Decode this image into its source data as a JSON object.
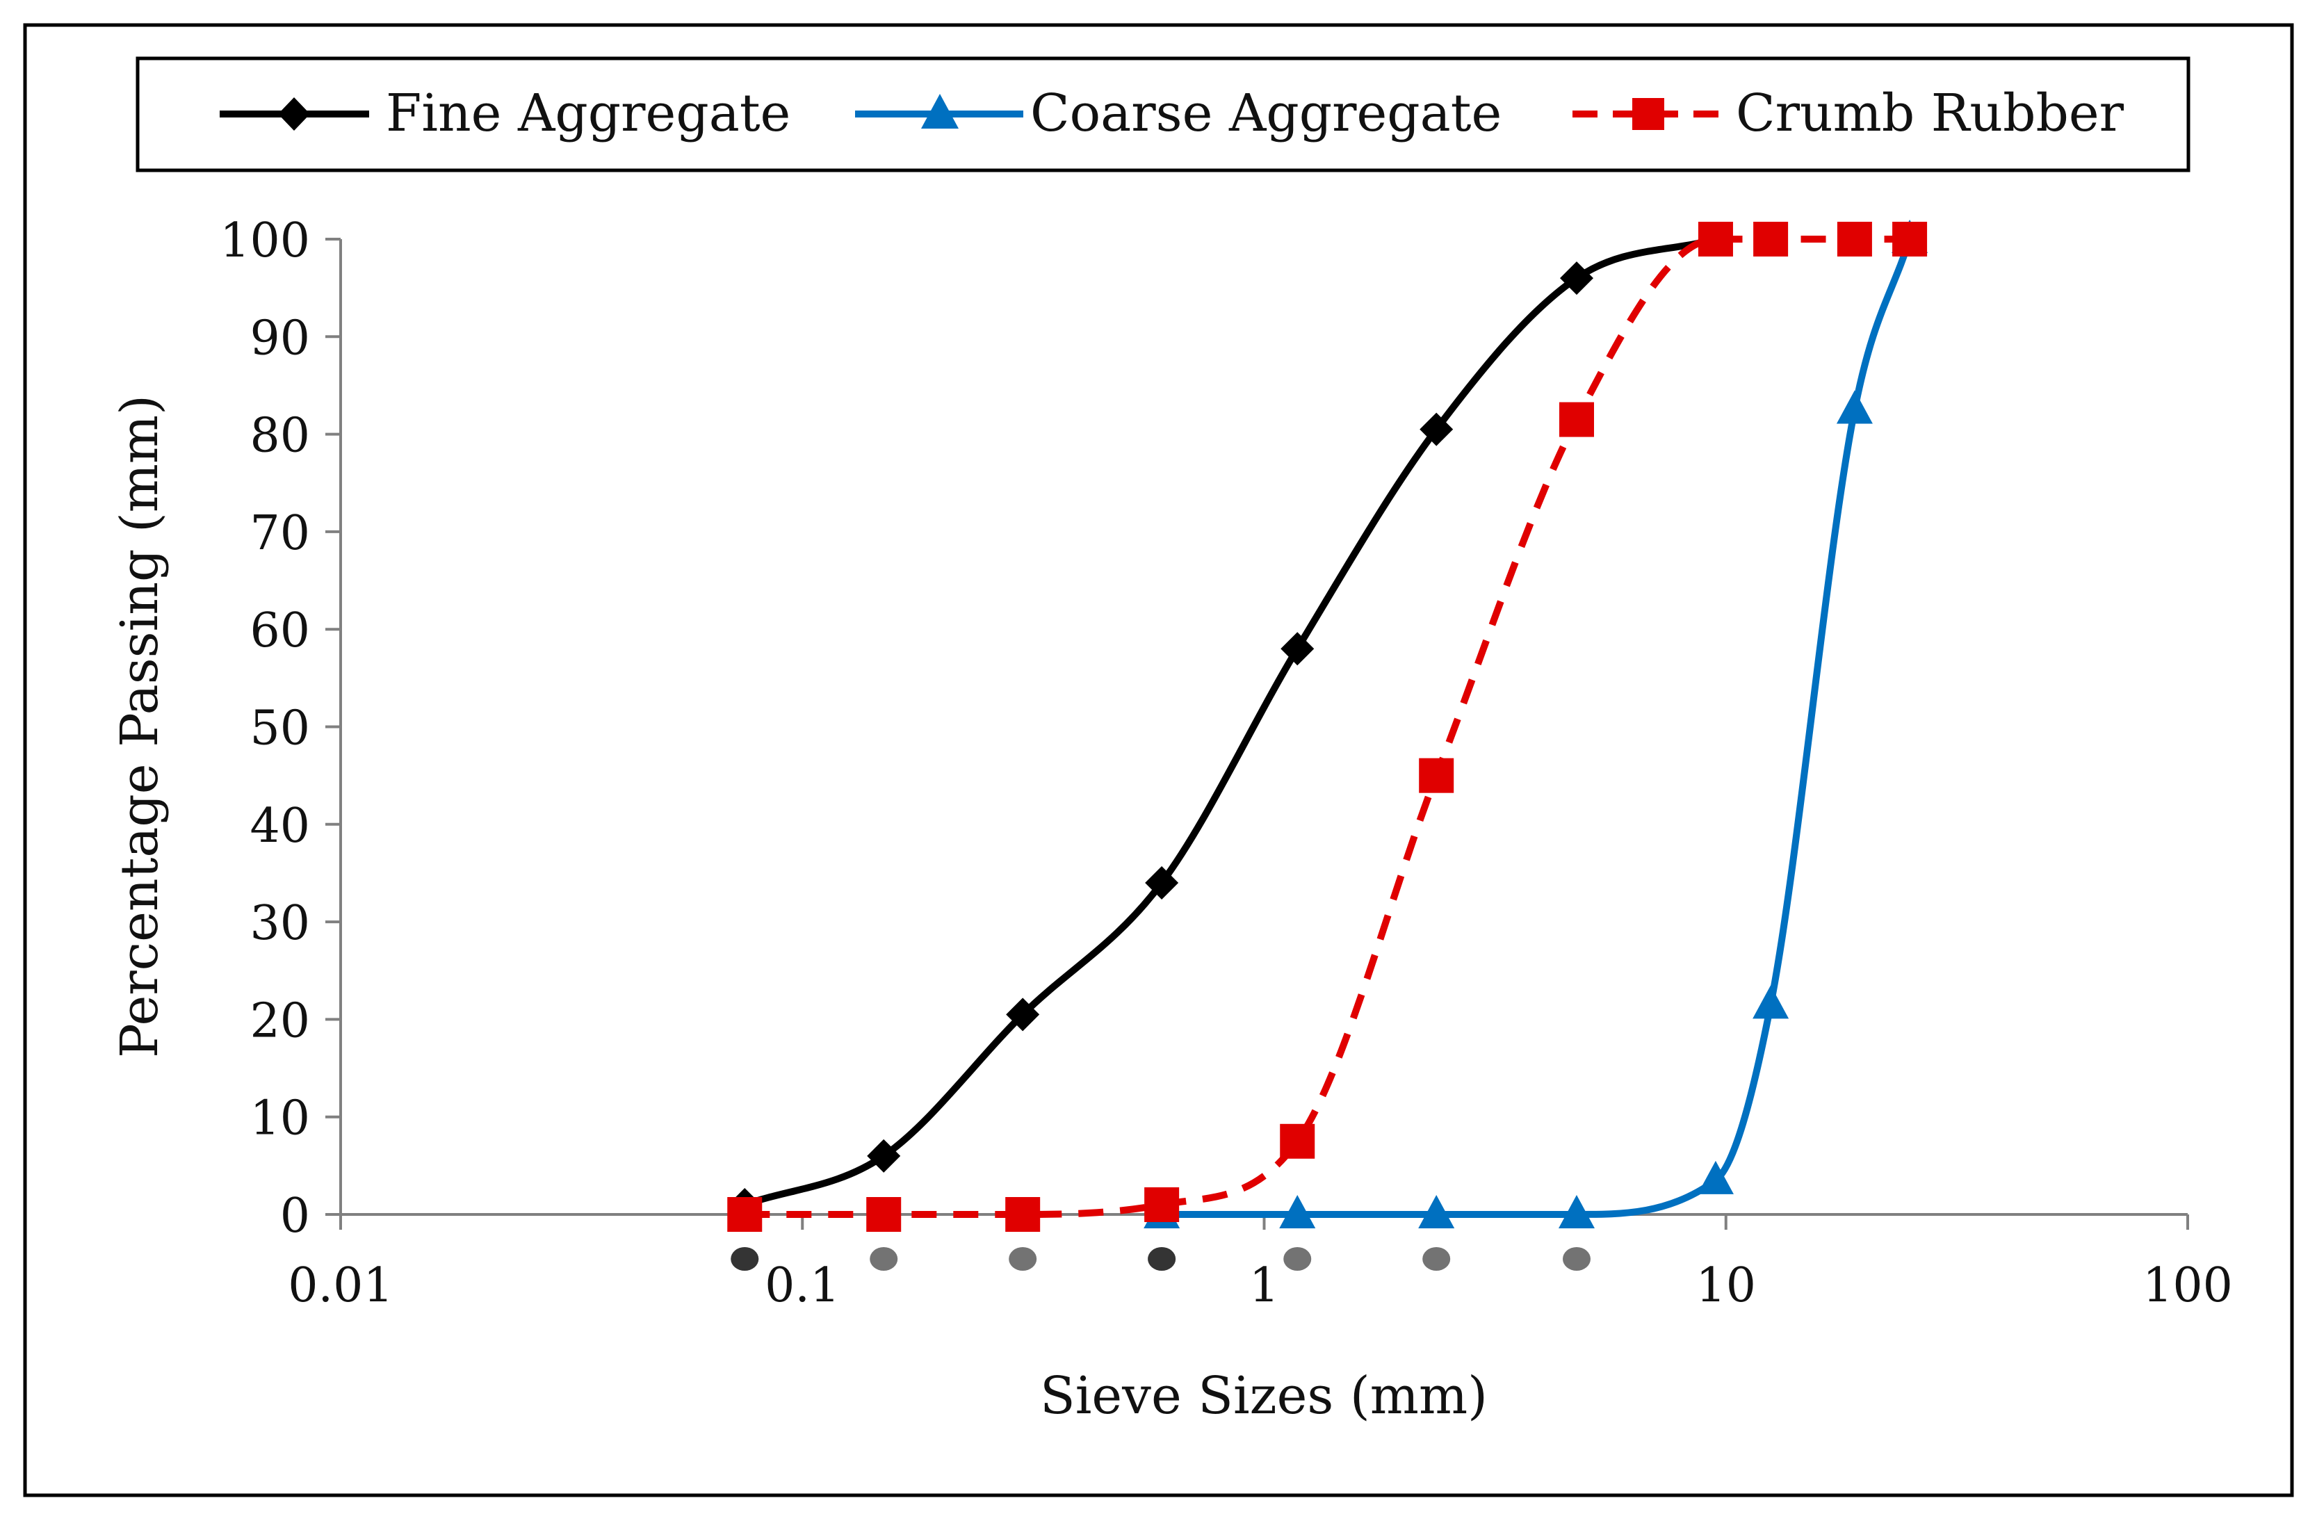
{
  "chart_data": {
    "type": "line",
    "title": "",
    "xlabel": "Sieve Sizes (mm)",
    "ylabel": "Percentage Passing (mm)",
    "xscale": "log",
    "xlim": [
      0.01,
      100
    ],
    "ylim": [
      0,
      100
    ],
    "x_ticks": [
      "0.01",
      "0.1",
      "1",
      "10",
      "100"
    ],
    "y_ticks": [
      "0",
      "10",
      "20",
      "30",
      "40",
      "50",
      "60",
      "70",
      "80",
      "90",
      "100"
    ],
    "legend_position": "top",
    "series": [
      {
        "name": "Fine Aggregate",
        "color": "#000000",
        "marker": "diamond",
        "line_style": "solid",
        "x": [
          0.075,
          0.15,
          0.3,
          0.6,
          1.18,
          2.36,
          4.75,
          9.5
        ],
        "values": [
          1,
          6,
          20.5,
          34,
          58,
          80.5,
          96,
          100
        ]
      },
      {
        "name": "Coarse Aggregate",
        "color": "#0070C0",
        "marker": "triangle",
        "line_style": "solid",
        "x": [
          0.6,
          1.18,
          2.36,
          4.75,
          9.5,
          12.5,
          19,
          25
        ],
        "values": [
          0,
          0,
          0,
          0,
          3.5,
          21.5,
          82.5,
          100
        ]
      },
      {
        "name": "Crumb Rubber",
        "color": "#E00000",
        "marker": "square",
        "line_style": "dashed",
        "x": [
          0.075,
          0.15,
          0.3,
          0.6,
          1.18,
          2.36,
          4.75,
          9.5,
          12.5,
          19,
          25
        ],
        "values": [
          0,
          0,
          0,
          1,
          7.5,
          45,
          81.5,
          100,
          100,
          100,
          100
        ]
      }
    ]
  }
}
